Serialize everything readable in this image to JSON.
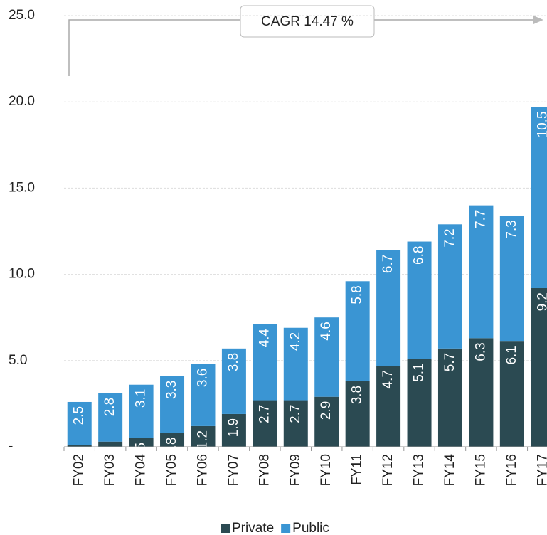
{
  "chart_data": {
    "type": "stacked_bar",
    "annotation": "CAGR 14.47 %",
    "categories": [
      "FY02",
      "FY03",
      "FY04",
      "FY05",
      "FY06",
      "FY07",
      "FY08",
      "FY09",
      "FY10",
      "FY11",
      "FY12",
      "FY13",
      "FY14",
      "FY15",
      "FY16",
      "FY17"
    ],
    "series": [
      {
        "name": "Private",
        "color": "#2b4a52",
        "values": [
          0.1,
          0.3,
          0.5,
          0.8,
          1.2,
          1.9,
          2.7,
          2.7,
          2.9,
          3.8,
          4.7,
          5.1,
          5.7,
          6.3,
          6.1,
          9.2
        ]
      },
      {
        "name": "Public",
        "color": "#3a95d3",
        "values": [
          2.5,
          2.8,
          3.1,
          3.3,
          3.6,
          3.8,
          4.4,
          4.2,
          4.6,
          5.8,
          6.7,
          6.8,
          7.2,
          7.7,
          7.3,
          10.5
        ]
      }
    ],
    "ylim": [
      0,
      25
    ],
    "yticks": [
      {
        "value": 0,
        "label": "-"
      },
      {
        "value": 5,
        "label": "5.0"
      },
      {
        "value": 10,
        "label": "10.0"
      },
      {
        "value": 15,
        "label": "15.0"
      },
      {
        "value": 20,
        "label": "20.0"
      },
      {
        "value": 25,
        "label": "25.0"
      }
    ],
    "grid": true
  }
}
